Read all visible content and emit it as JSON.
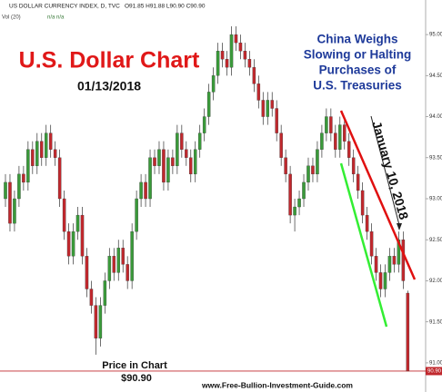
{
  "chart_data": {
    "type": "candlestick",
    "header": {
      "symbol": "US DOLLAR CURRENCY INDEX, D, TVC",
      "ohlc": "O91.85 H91.88 L90.90 C90.90",
      "volume": "Vol (20)",
      "volume_values": "n/a n/a"
    },
    "title": "U.S. Dollar Chart",
    "subtitle": "01/13/2018",
    "annotation_lines": [
      "China Weighs",
      "Slowing or Halting",
      "Purchases of",
      "U.S. Treasuries"
    ],
    "date_annotation": "January 10, 2018",
    "price_caption": "Price in Chart",
    "price_text": "$90.90",
    "footer": "www.Free-Bullion-Investment-Guide.com",
    "last_price": {
      "value": 90.9,
      "label": "90.90"
    },
    "up_color": "#3a9a3a",
    "down_color": "#c0282d",
    "ylim": [
      90.8,
      95.2
    ],
    "yticks": [
      {
        "value": 91,
        "label": "91.00"
      },
      {
        "value": 91.5,
        "label": "91.50"
      },
      {
        "value": 92,
        "label": "92.00"
      },
      {
        "value": 92.5,
        "label": "92.50"
      },
      {
        "value": 93,
        "label": "93.00"
      },
      {
        "value": 93.5,
        "label": "93.50"
      },
      {
        "value": 94,
        "label": "94.00"
      },
      {
        "value": 94.5,
        "label": "94.50"
      },
      {
        "value": 95,
        "label": "95.00"
      }
    ],
    "open": [
      93.0,
      93.2,
      92.7,
      93.0,
      93.3,
      93.2,
      93.6,
      93.4,
      93.7,
      93.5,
      93.8,
      93.6,
      93.5,
      93.0,
      92.6,
      92.3,
      92.6,
      92.8,
      92.3,
      91.9,
      91.7,
      91.3,
      91.7,
      92.0,
      92.3,
      92.1,
      92.4,
      92.2,
      92.0,
      92.6,
      93.0,
      93.2,
      93.0,
      93.5,
      93.4,
      93.6,
      93.2,
      93.5,
      93.4,
      93.8,
      93.6,
      93.5,
      93.3,
      93.6,
      93.8,
      94.0,
      94.3,
      94.5,
      94.8,
      94.7,
      94.6,
      95.0,
      94.9,
      94.8,
      94.7,
      94.6,
      94.4,
      94.2,
      94.0,
      94.2,
      94.1,
      93.8,
      93.5,
      93.3,
      92.8,
      92.9,
      93.0,
      93.2,
      93.4,
      93.3,
      93.6,
      93.8,
      94.0,
      93.8,
      93.6,
      93.9,
      93.7,
      93.5,
      93.3,
      93.1,
      92.8,
      92.6,
      92.3,
      92.1,
      91.9,
      92.1,
      92.3,
      92.2,
      92.5,
      91.85
    ],
    "high": [
      93.3,
      93.3,
      93.1,
      93.4,
      93.4,
      93.7,
      93.7,
      93.8,
      93.8,
      93.9,
      93.9,
      93.7,
      93.6,
      93.1,
      92.7,
      92.7,
      92.9,
      92.9,
      92.4,
      92.0,
      91.8,
      91.8,
      92.1,
      92.4,
      92.4,
      92.5,
      92.5,
      92.3,
      92.7,
      93.1,
      93.3,
      93.3,
      93.6,
      93.6,
      93.7,
      93.7,
      93.6,
      93.6,
      93.9,
      93.9,
      93.7,
      93.6,
      93.7,
      93.9,
      94.1,
      94.4,
      94.6,
      94.9,
      94.9,
      94.8,
      95.1,
      95.1,
      95.0,
      94.9,
      94.8,
      94.7,
      94.5,
      94.3,
      94.3,
      94.3,
      94.2,
      93.9,
      93.6,
      93.4,
      93.0,
      93.1,
      93.3,
      93.5,
      93.5,
      93.7,
      93.9,
      94.1,
      94.1,
      93.9,
      94.0,
      94.0,
      93.8,
      93.6,
      93.4,
      93.2,
      92.9,
      92.7,
      92.4,
      92.2,
      92.2,
      92.4,
      92.4,
      92.6,
      92.6,
      91.88
    ],
    "low": [
      92.9,
      92.6,
      92.6,
      92.9,
      93.1,
      93.1,
      93.3,
      93.3,
      93.4,
      93.4,
      93.5,
      93.4,
      92.9,
      92.5,
      92.2,
      92.2,
      92.5,
      92.2,
      91.8,
      91.6,
      91.1,
      91.2,
      91.6,
      91.9,
      92.0,
      92.0,
      92.1,
      91.9,
      91.9,
      92.5,
      92.9,
      92.9,
      92.9,
      93.3,
      93.3,
      93.1,
      93.1,
      93.3,
      93.3,
      93.5,
      93.4,
      93.2,
      93.2,
      93.5,
      93.7,
      93.9,
      94.2,
      94.4,
      94.6,
      94.5,
      94.5,
      94.8,
      94.7,
      94.6,
      94.5,
      94.3,
      94.1,
      93.9,
      93.9,
      94.0,
      93.7,
      93.4,
      93.2,
      92.7,
      92.6,
      92.8,
      92.9,
      93.1,
      93.2,
      93.2,
      93.5,
      93.7,
      93.7,
      93.5,
      93.5,
      93.6,
      93.4,
      93.2,
      93.0,
      92.7,
      92.5,
      92.2,
      92.0,
      91.8,
      91.8,
      92.0,
      92.1,
      92.1,
      91.9,
      90.9
    ],
    "close": [
      93.2,
      92.7,
      93.0,
      93.3,
      93.2,
      93.6,
      93.4,
      93.7,
      93.5,
      93.8,
      93.6,
      93.5,
      93.0,
      92.6,
      92.3,
      92.6,
      92.8,
      92.3,
      91.9,
      91.7,
      91.3,
      91.7,
      92.0,
      92.3,
      92.1,
      92.4,
      92.2,
      92.0,
      92.6,
      93.0,
      93.2,
      93.0,
      93.5,
      93.4,
      93.6,
      93.2,
      93.5,
      93.4,
      93.8,
      93.6,
      93.5,
      93.3,
      93.6,
      93.8,
      94.0,
      94.3,
      94.5,
      94.8,
      94.7,
      94.6,
      95.0,
      94.9,
      94.8,
      94.7,
      94.6,
      94.4,
      94.2,
      94.0,
      94.2,
      94.1,
      93.8,
      93.5,
      93.3,
      92.8,
      92.9,
      93.0,
      93.2,
      93.4,
      93.3,
      93.6,
      93.8,
      94.0,
      93.8,
      93.6,
      93.9,
      93.7,
      93.5,
      93.3,
      93.1,
      92.8,
      92.6,
      92.3,
      92.1,
      91.9,
      92.1,
      92.3,
      92.2,
      92.5,
      92.0,
      90.9
    ]
  }
}
